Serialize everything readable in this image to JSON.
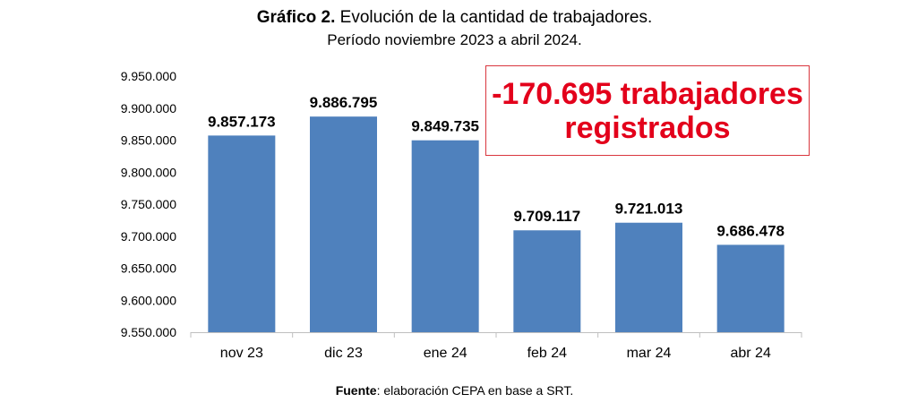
{
  "header": {
    "title_bold": "Gráfico 2.",
    "title_rest": " Evolución de la cantidad de trabajadores.",
    "subtitle": "Período noviembre 2023 a abril 2024."
  },
  "callout": {
    "text": "-170.695 trabajadores\nregistrados",
    "color": "#e3001b",
    "border_color": "#d9363e"
  },
  "footer": {
    "source_label": "Fuente",
    "source_text": ": elaboración CEPA en base a SRT."
  },
  "chart_data": {
    "type": "bar",
    "categories": [
      "nov 23",
      "dic 23",
      "ene 24",
      "feb 24",
      "mar 24",
      "abr 24"
    ],
    "values": [
      9857173,
      9886795,
      9849735,
      9709117,
      9721013,
      9686478
    ],
    "data_labels": [
      "9.857.173",
      "9.886.795",
      "9.849.735",
      "9.709.117",
      "9.721.013",
      "9.686.478"
    ],
    "ylim": [
      9550000,
      9950000
    ],
    "yticks": [
      9550000,
      9600000,
      9650000,
      9700000,
      9750000,
      9800000,
      9850000,
      9900000,
      9950000
    ],
    "ytick_labels": [
      "9.550.000",
      "9.600.000",
      "9.650.000",
      "9.700.000",
      "9.750.000",
      "9.800.000",
      "9.850.000",
      "9.900.000",
      "9.950.000"
    ],
    "bar_color": "#4f81bd",
    "grid": false,
    "legend": "none"
  }
}
